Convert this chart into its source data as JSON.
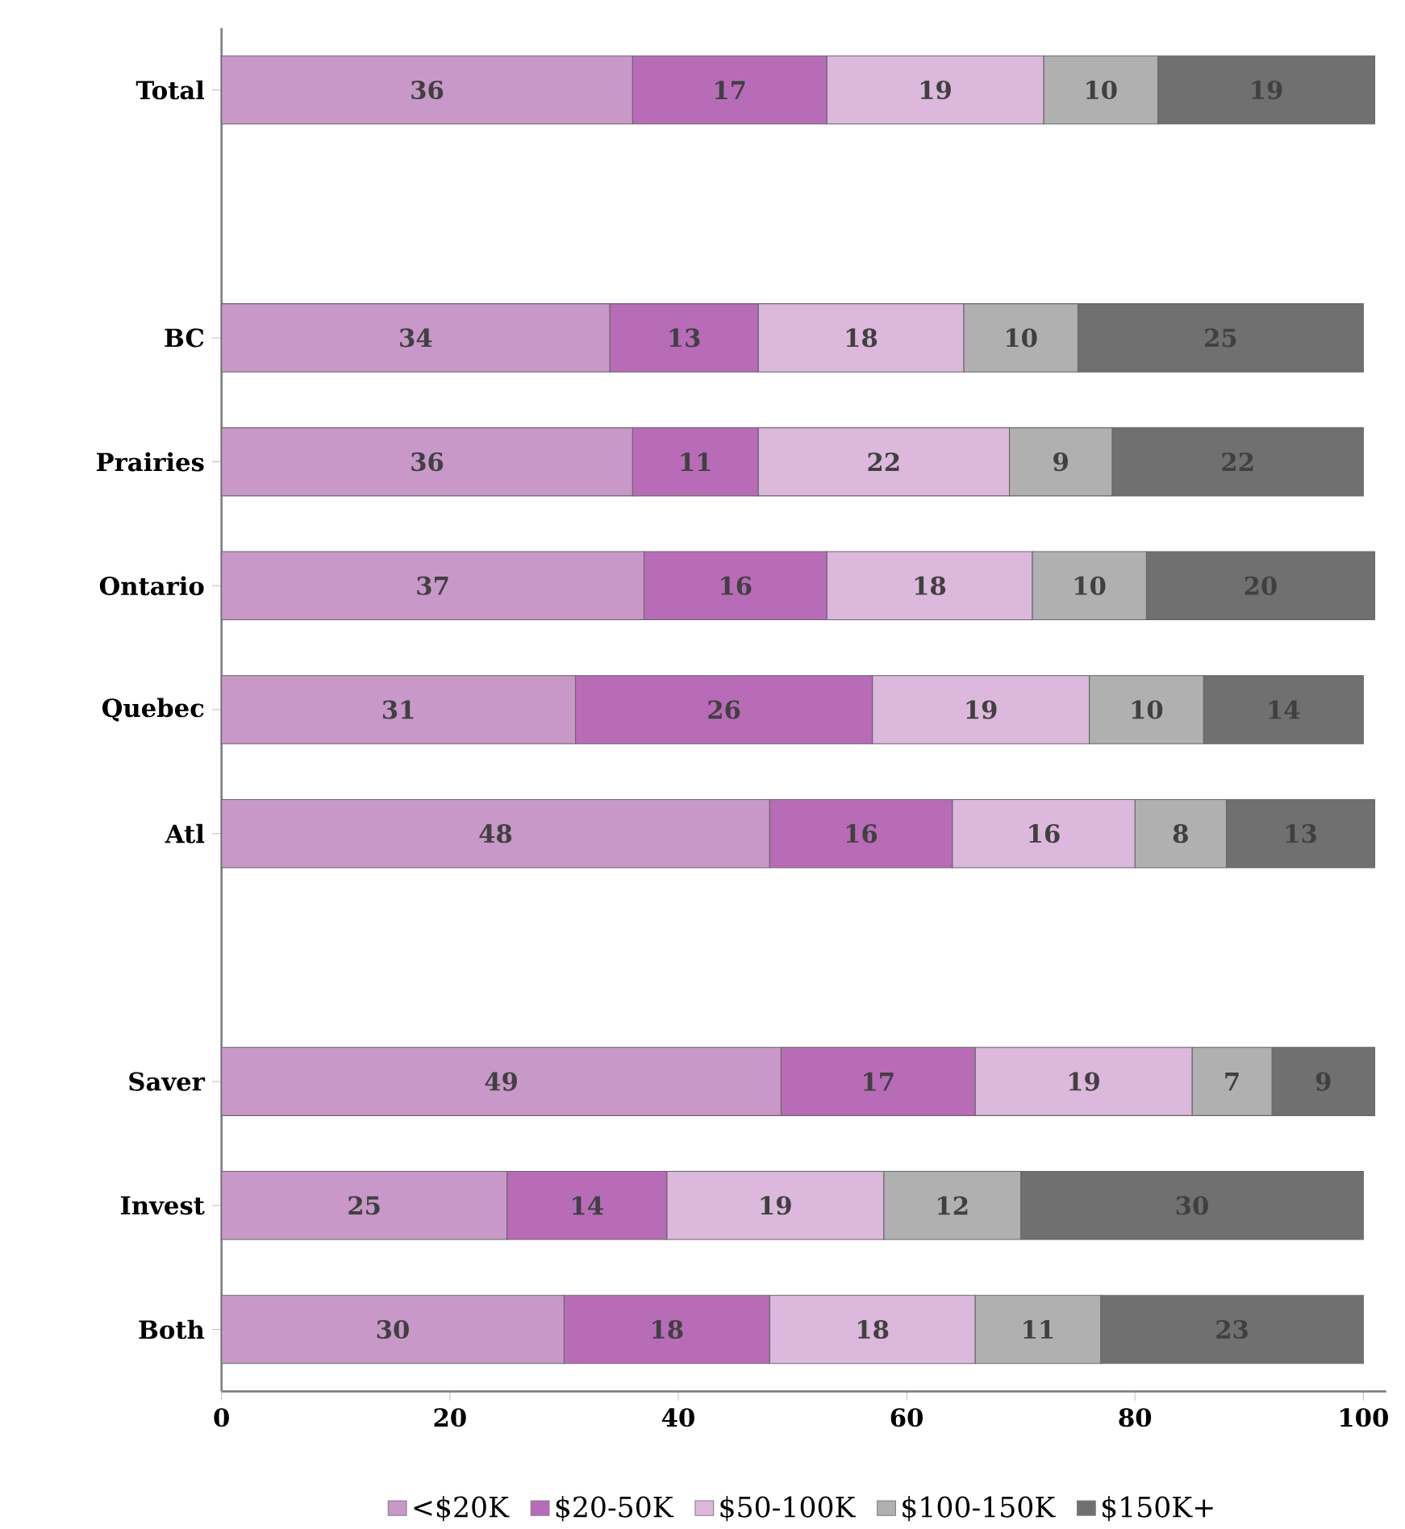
{
  "chart_data": {
    "type": "bar",
    "orientation": "horizontal",
    "stacked": true,
    "data_labels": true,
    "legend": "bottom",
    "categories": [
      "Total",
      null,
      "BC",
      "Prairies",
      "Ontario",
      "Quebec",
      "Atl",
      null,
      "Saver",
      "Invest",
      "Both"
    ],
    "series": [
      {
        "name": "<$20K",
        "color": "#c898c8",
        "values": [
          36,
          null,
          34,
          36,
          37,
          31,
          48,
          null,
          49,
          25,
          30
        ]
      },
      {
        "name": "$20-50K",
        "color": "#b86cb8",
        "values": [
          17,
          null,
          13,
          11,
          16,
          26,
          16,
          null,
          17,
          14,
          18
        ]
      },
      {
        "name": "$50-100K",
        "color": "#dcb8dc",
        "values": [
          19,
          null,
          18,
          22,
          18,
          19,
          16,
          null,
          19,
          19,
          18
        ]
      },
      {
        "name": "$100-150K",
        "color": "#b0b0b0",
        "values": [
          10,
          null,
          10,
          9,
          10,
          10,
          8,
          null,
          7,
          12,
          11
        ]
      },
      {
        "name": "$150K+",
        "color": "#707070",
        "values": [
          19,
          null,
          25,
          22,
          20,
          14,
          13,
          null,
          9,
          30,
          23
        ]
      }
    ],
    "xlim": [
      0,
      102
    ],
    "xticks": [
      0,
      20,
      40,
      60,
      80,
      100
    ]
  }
}
